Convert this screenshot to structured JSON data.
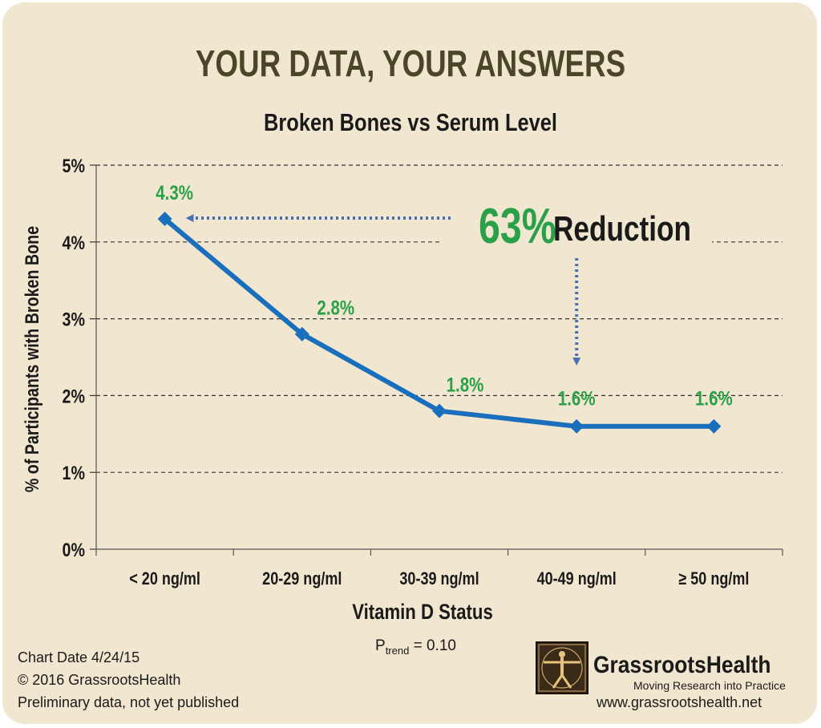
{
  "chart_data": {
    "type": "line",
    "title": "YOUR DATA, YOUR ANSWERS",
    "subtitle": "Broken Bones vs Serum Level",
    "xlabel": "Vitamin D Status",
    "ylabel": "% of Participants with Broken Bone",
    "categories": [
      "< 20 ng/ml",
      "20-29 ng/ml",
      "30-39 ng/ml",
      "40-49 ng/ml",
      "≥ 50 ng/ml"
    ],
    "series": [
      {
        "values": [
          4.3,
          2.8,
          1.8,
          1.6,
          1.6
        ]
      }
    ],
    "data_labels": [
      "4.3%",
      "2.8%",
      "1.8%",
      "1.6%",
      "1.6%"
    ],
    "yticks": [
      "0%",
      "1%",
      "2%",
      "3%",
      "4%",
      "5%"
    ],
    "ylim": [
      0,
      5
    ],
    "grid": "horizontal dashed",
    "annotation": {
      "value": "63%",
      "text": "Reduction"
    },
    "ptrend": {
      "prefix": "P",
      "sub": "trend",
      "suffix": " = 0.10"
    },
    "colors": {
      "line": "#1a6fbd",
      "labels": "#2aa148",
      "annotation_arrow": "#4a6fb5",
      "background": "#f1e6cf",
      "title": "#4a4628"
    }
  },
  "footer": {
    "chart_date": "Chart Date 4/24/15",
    "copyright": "© 2016 GrassrootsHealth",
    "note": "Preliminary data, not yet published"
  },
  "brand": {
    "name": "GrassrootsHealth",
    "tagline": "Moving Research into Practice",
    "url": "www.grassrootshealth.net",
    "icon": "vitruvian-man-logo"
  }
}
